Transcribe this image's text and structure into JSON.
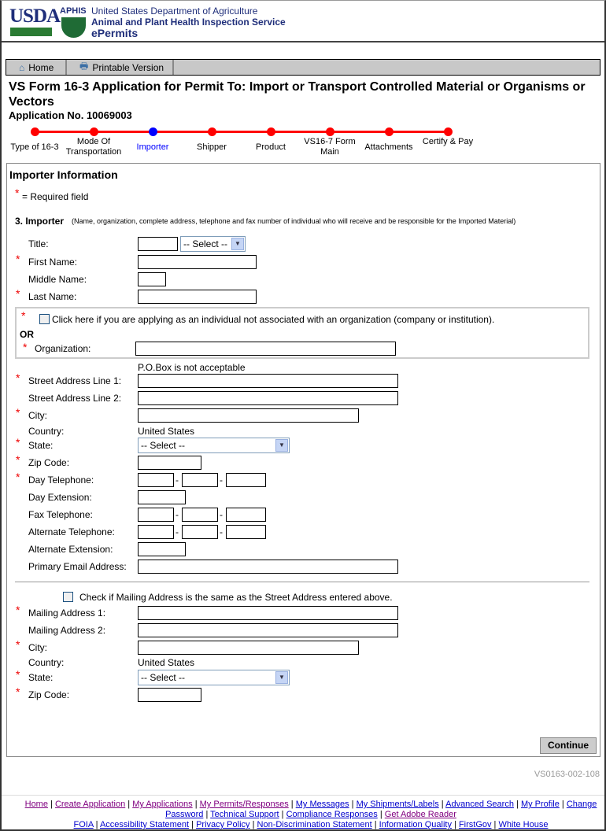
{
  "header": {
    "usda": "USDA",
    "aphis": "APHIS",
    "line1": "United States Department of Agriculture",
    "line2": "Animal and Plant Health Inspection Service",
    "line3": "ePermits"
  },
  "toolbar": {
    "home": "Home",
    "print": "Printable Version"
  },
  "page": {
    "title": "VS Form 16-3 Application for Permit To: Import or Transport Controlled Material or Organisms or Vectors",
    "app_no": "Application No. 10069003"
  },
  "steps": [
    {
      "label": "Type of 16-3"
    },
    {
      "label": "Mode Of Transportation"
    },
    {
      "label": "Importer",
      "current": true
    },
    {
      "label": "Shipper"
    },
    {
      "label": "Product"
    },
    {
      "label": "VS16-7 Form Main"
    },
    {
      "label": "Attachments"
    },
    {
      "label": "Certify & Pay"
    }
  ],
  "form": {
    "heading": "Importer Information",
    "required_note": "= Required field",
    "asterisk": "*",
    "section": "3. Importer",
    "section_note": "(Name, organization, complete address, telephone and fax number of individual who will receive and be responsible for the Imported Material)",
    "title": "Title:",
    "title_select": "-- Select --",
    "first": "First Name:",
    "middle": "Middle Name:",
    "last": "Last Name:",
    "individual": "Click here if you are applying as an individual not associated with an organization (company or institution).",
    "or": "OR",
    "org": "Organization:",
    "pobox": "P.O.Box is not acceptable",
    "street1": "Street Address Line 1:",
    "street2": "Street Address Line 2:",
    "city": "City:",
    "country": "Country:",
    "country_value": "United States",
    "state": "State:",
    "state_select": "-- Select --",
    "zip": "Zip Code:",
    "day_tel": "Day Telephone:",
    "day_ext": "Day Extension:",
    "fax": "Fax Telephone:",
    "alt_tel": "Alternate Telephone:",
    "alt_ext": "Alternate Extension:",
    "email": "Primary Email Address:",
    "same": "Check if Mailing Address is the same as the Street Address entered above.",
    "mail1": "Mailing Address 1:",
    "mail2": "Mailing Address 2:",
    "continue": "Continue"
  },
  "form_id": "VS0163-002-108",
  "footer": {
    "links": [
      "Home",
      "Create Application",
      "My Applications",
      "My Permits/Responses",
      "My Messages",
      "My Shipments/Labels",
      "Advanced Search",
      "My Profile",
      "Change Password",
      "Technical Support",
      "Compliance Responses",
      "Get Adobe Reader",
      "FOIA",
      "Accessibility Statement",
      "Privacy Policy",
      "Non-Discrimination Statement",
      "Information Quality",
      "FirstGov",
      "White House"
    ]
  },
  "colors": {
    "progress": "#ff0000",
    "current_step": "#0000ff",
    "visited_link": "#800080",
    "link": "#0000cc"
  }
}
